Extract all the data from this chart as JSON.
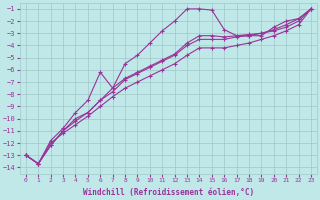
{
  "xlabel": "Windchill (Refroidissement éolien,°C)",
  "bg_color": "#c0e8e8",
  "grid_color": "#a0c8c8",
  "line_color": "#993399",
  "xlim": [
    -0.5,
    23.5
  ],
  "ylim": [
    -14.5,
    -0.5
  ],
  "xticks": [
    0,
    1,
    2,
    3,
    4,
    5,
    6,
    7,
    8,
    9,
    10,
    11,
    12,
    13,
    14,
    15,
    16,
    17,
    18,
    19,
    20,
    21,
    22,
    23
  ],
  "yticks": [
    -14,
    -13,
    -12,
    -11,
    -10,
    -9,
    -8,
    -7,
    -6,
    -5,
    -4,
    -3,
    -2,
    -1
  ],
  "line_curved_x": [
    0,
    1,
    2,
    3,
    4,
    5,
    6,
    7,
    8,
    9,
    10,
    11,
    12,
    13,
    14,
    15,
    16,
    17,
    18,
    19,
    20,
    21,
    22,
    23
  ],
  "line_curved_y": [
    -13,
    -13.7,
    -11.8,
    -10.8,
    -9.5,
    -8.5,
    -6.2,
    -7.5,
    -5.5,
    -4.8,
    -3.8,
    -2.8,
    -2.0,
    -1.0,
    -1.0,
    -1.1,
    -2.7,
    -3.2,
    -3.2,
    -3.2,
    -2.5,
    -2.0,
    -1.8,
    -1.0
  ],
  "line_linear1_x": [
    0,
    1,
    2,
    3,
    4,
    5,
    6,
    7,
    8,
    9,
    10,
    11,
    12,
    13,
    14,
    15,
    16,
    17,
    18,
    19,
    20,
    21,
    22,
    23
  ],
  "line_linear1_y": [
    -13,
    -13.7,
    -12.2,
    -11.0,
    -10.2,
    -9.5,
    -8.5,
    -7.8,
    -6.8,
    -6.3,
    -5.8,
    -5.3,
    -4.8,
    -4.0,
    -3.5,
    -3.5,
    -3.5,
    -3.3,
    -3.2,
    -3.0,
    -2.8,
    -2.5,
    -2.0,
    -1.0
  ],
  "line_linear2_x": [
    0,
    1,
    2,
    3,
    4,
    5,
    6,
    7,
    8,
    9,
    10,
    11,
    12,
    13,
    14,
    15,
    16,
    17,
    18,
    19,
    20,
    21,
    22,
    23
  ],
  "line_linear2_y": [
    -13,
    -13.7,
    -12.2,
    -11.0,
    -10.0,
    -9.5,
    -8.5,
    -7.5,
    -6.7,
    -6.2,
    -5.7,
    -5.2,
    -4.7,
    -3.8,
    -3.2,
    -3.2,
    -3.3,
    -3.2,
    -3.1,
    -3.0,
    -2.7,
    -2.3,
    -1.8,
    -1.0
  ],
  "line_linear3_x": [
    0,
    1,
    2,
    3,
    4,
    5,
    6,
    7,
    8,
    9,
    10,
    11,
    12,
    13,
    14,
    15,
    16,
    17,
    18,
    19,
    20,
    21,
    22,
    23
  ],
  "line_linear3_y": [
    -13,
    -13.7,
    -12.0,
    -11.2,
    -10.5,
    -9.8,
    -9.0,
    -8.2,
    -7.5,
    -7.0,
    -6.5,
    -6.0,
    -5.5,
    -4.8,
    -4.2,
    -4.2,
    -4.2,
    -4.0,
    -3.8,
    -3.5,
    -3.2,
    -2.8,
    -2.3,
    -1.0
  ]
}
